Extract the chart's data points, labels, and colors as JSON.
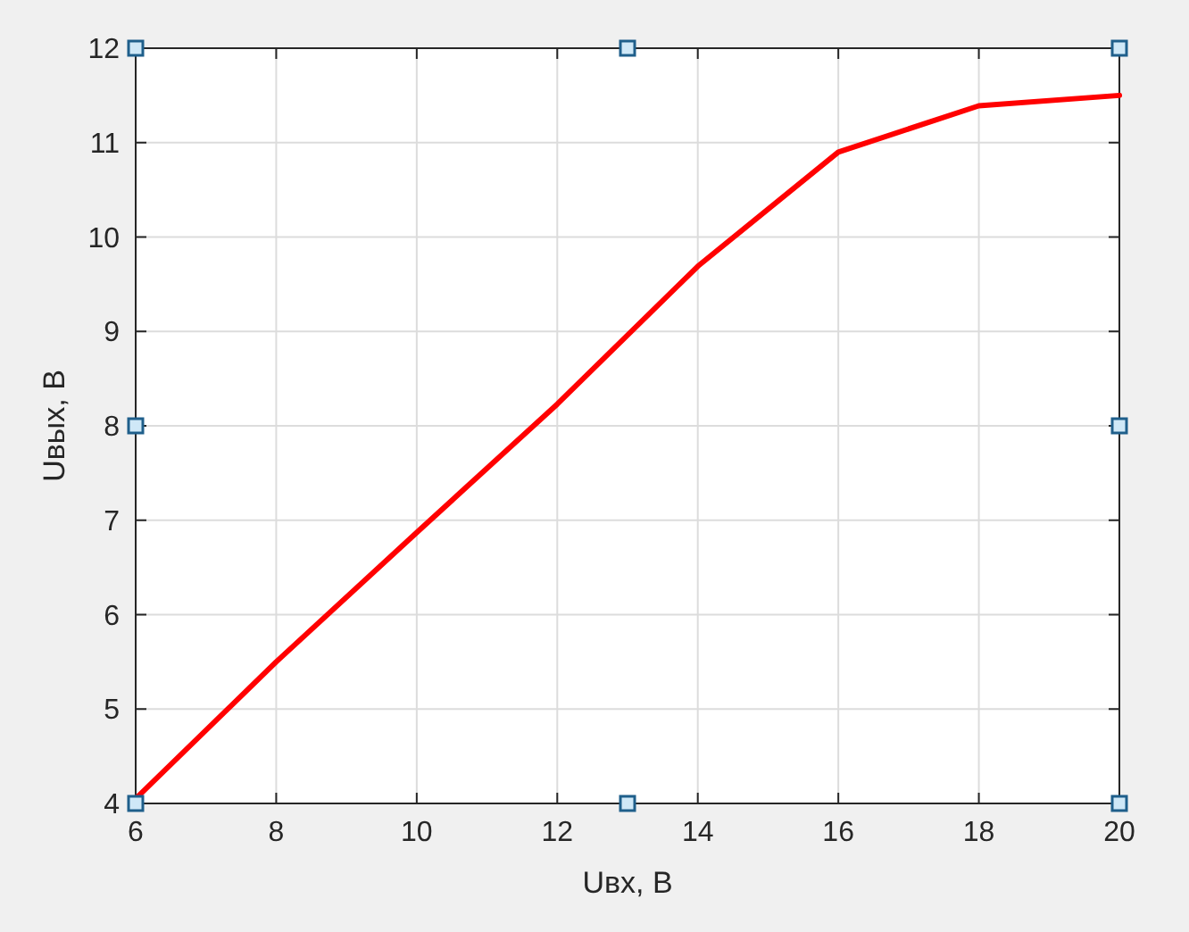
{
  "chart_data": {
    "type": "line",
    "xlabel": "Uвх, В",
    "ylabel": "Uвых, В",
    "x": [
      6,
      8,
      10,
      12,
      14,
      16,
      18,
      20
    ],
    "series": [
      {
        "color": "#ff0000",
        "values": [
          4.05,
          5.5,
          6.87,
          8.23,
          9.69,
          10.9,
          11.39,
          11.5
        ]
      }
    ],
    "xlim": [
      6,
      20
    ],
    "xticks": [
      6,
      8,
      10,
      12,
      14,
      16,
      18,
      20
    ],
    "ylim": [
      4,
      12
    ],
    "yticks": [
      4,
      5,
      6,
      7,
      8,
      9,
      10,
      11,
      12
    ],
    "grid": true,
    "marker": "none",
    "line_style": "solid"
  }
}
